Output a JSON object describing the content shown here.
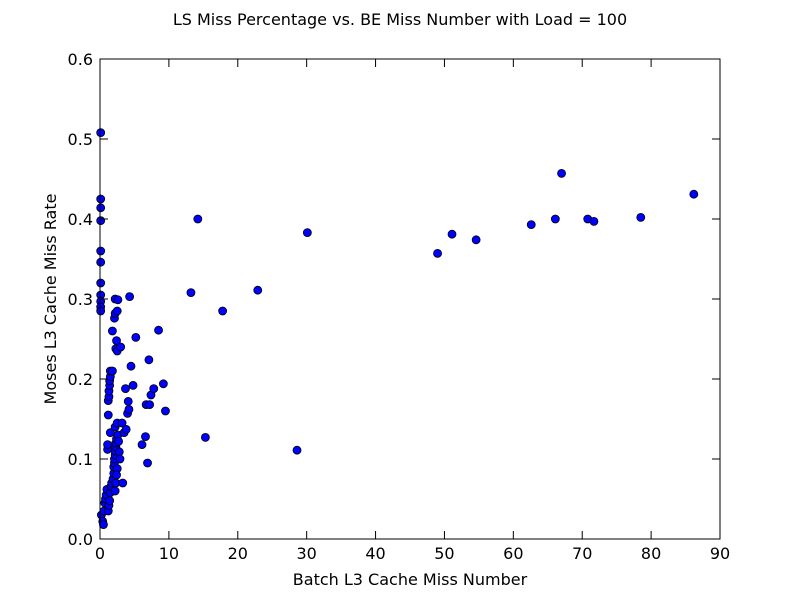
{
  "chart_data": {
    "type": "scatter",
    "title": "LS Miss Percentage vs. BE Miss Number with Load = 100",
    "xlabel": "Batch L3 Cache Miss Number",
    "ylabel": "Moses L3 Cache Miss Rate",
    "xlim": [
      0,
      90
    ],
    "ylim": [
      0.0,
      0.6
    ],
    "xticks": [
      "0",
      "10",
      "20",
      "30",
      "40",
      "50",
      "60",
      "70",
      "80",
      "90"
    ],
    "yticks": [
      "0.0",
      "0.1",
      "0.2",
      "0.3",
      "0.4",
      "0.5",
      "0.6"
    ],
    "grid": false,
    "marker_color": "#0000ff",
    "marker_edge_color": "#000000",
    "series": [
      {
        "points": [
          [
            0.1,
            0.508
          ],
          [
            0.1,
            0.425
          ],
          [
            0.1,
            0.414
          ],
          [
            0.1,
            0.398
          ],
          [
            0.1,
            0.36
          ],
          [
            0.1,
            0.346
          ],
          [
            0.1,
            0.32
          ],
          [
            0.1,
            0.305
          ],
          [
            0.1,
            0.297
          ],
          [
            0.1,
            0.29
          ],
          [
            0.1,
            0.285
          ],
          [
            0.2,
            0.03
          ],
          [
            0.4,
            0.022
          ],
          [
            0.5,
            0.018
          ],
          [
            0.6,
            0.035
          ],
          [
            0.7,
            0.045
          ],
          [
            0.8,
            0.05
          ],
          [
            0.9,
            0.055
          ],
          [
            1.0,
            0.062
          ],
          [
            1.1,
            0.112
          ],
          [
            1.1,
            0.118
          ],
          [
            1.2,
            0.155
          ],
          [
            1.2,
            0.173
          ],
          [
            1.3,
            0.178
          ],
          [
            1.3,
            0.185
          ],
          [
            1.4,
            0.192
          ],
          [
            1.4,
            0.198
          ],
          [
            1.5,
            0.203
          ],
          [
            1.5,
            0.21
          ],
          [
            1.2,
            0.035
          ],
          [
            1.3,
            0.042
          ],
          [
            1.4,
            0.048
          ],
          [
            1.5,
            0.058
          ],
          [
            1.6,
            0.066
          ],
          [
            1.7,
            0.07
          ],
          [
            1.5,
            0.133
          ],
          [
            1.8,
            0.21
          ],
          [
            1.8,
            0.26
          ],
          [
            1.9,
            0.075
          ],
          [
            2.0,
            0.082
          ],
          [
            2.0,
            0.09
          ],
          [
            2.1,
            0.095
          ],
          [
            2.1,
            0.1
          ],
          [
            2.2,
            0.105
          ],
          [
            2.2,
            0.11
          ],
          [
            2.3,
            0.115
          ],
          [
            2.3,
            0.12
          ],
          [
            2.4,
            0.125
          ],
          [
            2.2,
            0.14
          ],
          [
            2.1,
            0.276
          ],
          [
            2.2,
            0.282
          ],
          [
            2.2,
            0.3
          ],
          [
            2.3,
            0.238
          ],
          [
            2.4,
            0.248
          ],
          [
            2.5,
            0.235
          ],
          [
            2.5,
            0.285
          ],
          [
            2.6,
            0.299
          ],
          [
            2.5,
            0.145
          ],
          [
            2.6,
            0.13
          ],
          [
            2.7,
            0.122
          ],
          [
            2.8,
            0.109
          ],
          [
            2.9,
            0.1
          ],
          [
            2.5,
            0.088
          ],
          [
            2.4,
            0.08
          ],
          [
            2.3,
            0.07
          ],
          [
            2.2,
            0.06
          ],
          [
            3.0,
            0.24
          ],
          [
            3.2,
            0.145
          ],
          [
            3.3,
            0.07
          ],
          [
            3.5,
            0.133
          ],
          [
            3.7,
            0.188
          ],
          [
            3.8,
            0.137
          ],
          [
            4.0,
            0.157
          ],
          [
            4.1,
            0.172
          ],
          [
            4.2,
            0.162
          ],
          [
            4.3,
            0.303
          ],
          [
            4.5,
            0.216
          ],
          [
            4.8,
            0.192
          ],
          [
            5.2,
            0.252
          ],
          [
            6.1,
            0.118
          ],
          [
            6.6,
            0.128
          ],
          [
            6.7,
            0.168
          ],
          [
            6.9,
            0.095
          ],
          [
            7.1,
            0.224
          ],
          [
            7.2,
            0.168
          ],
          [
            7.4,
            0.18
          ],
          [
            7.8,
            0.188
          ],
          [
            8.5,
            0.261
          ],
          [
            9.2,
            0.194
          ],
          [
            9.5,
            0.16
          ],
          [
            13.2,
            0.308
          ],
          [
            14.2,
            0.4
          ],
          [
            15.3,
            0.127
          ],
          [
            17.8,
            0.285
          ],
          [
            22.9,
            0.311
          ],
          [
            28.6,
            0.111
          ],
          [
            30.1,
            0.383
          ],
          [
            49.0,
            0.357
          ],
          [
            51.1,
            0.381
          ],
          [
            54.6,
            0.374
          ],
          [
            62.6,
            0.393
          ],
          [
            66.1,
            0.4
          ],
          [
            67.0,
            0.457
          ],
          [
            70.8,
            0.4
          ],
          [
            71.7,
            0.397
          ],
          [
            78.5,
            0.402
          ],
          [
            86.2,
            0.431
          ]
        ]
      }
    ]
  }
}
